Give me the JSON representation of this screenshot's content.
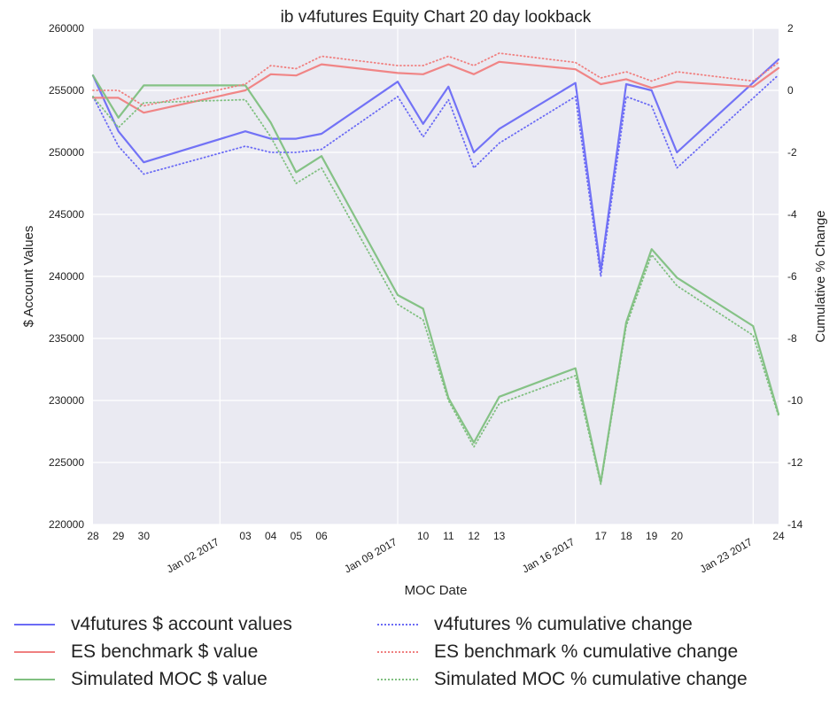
{
  "chart_data": {
    "type": "line",
    "title": "ib v4futures Equity Chart 20 day lookback",
    "xlabel": "MOC Date",
    "ylabel": "$ Account Values",
    "ylabel_right": "Cumulative % Change",
    "x": [
      "2016-12-28",
      "2016-12-29",
      "2016-12-30",
      "2017-01-03",
      "2017-01-04",
      "2017-01-05",
      "2017-01-06",
      "2017-01-09",
      "2017-01-10",
      "2017-01-11",
      "2017-01-12",
      "2017-01-13",
      "2017-01-16",
      "2017-01-17",
      "2017-01-18",
      "2017-01-19",
      "2017-01-20",
      "2017-01-23",
      "2017-01-24"
    ],
    "x_tick_labels": [
      {
        "date": "2016-12-28",
        "label": "28"
      },
      {
        "date": "2016-12-29",
        "label": "29"
      },
      {
        "date": "2016-12-30",
        "label": "30"
      },
      {
        "date": "2017-01-03",
        "label": "03"
      },
      {
        "date": "2017-01-04",
        "label": "04"
      },
      {
        "date": "2017-01-05",
        "label": "05"
      },
      {
        "date": "2017-01-06",
        "label": "06"
      },
      {
        "date": "2017-01-10",
        "label": "10"
      },
      {
        "date": "2017-01-11",
        "label": "11"
      },
      {
        "date": "2017-01-12",
        "label": "12"
      },
      {
        "date": "2017-01-13",
        "label": "13"
      },
      {
        "date": "2017-01-17",
        "label": "17"
      },
      {
        "date": "2017-01-18",
        "label": "18"
      },
      {
        "date": "2017-01-19",
        "label": "19"
      },
      {
        "date": "2017-01-20",
        "label": "20"
      },
      {
        "date": "2017-01-24",
        "label": "24"
      }
    ],
    "x_major_labels": [
      {
        "date": "2017-01-02",
        "label": "Jan 02 2017"
      },
      {
        "date": "2017-01-09",
        "label": "Jan 09 2017"
      },
      {
        "date": "2017-01-16",
        "label": "Jan 16 2017"
      },
      {
        "date": "2017-01-23",
        "label": "Jan 23 2017"
      }
    ],
    "xlim": [
      "2016-12-28",
      "2017-01-24"
    ],
    "ylim": [
      220000,
      260000
    ],
    "yticks": [
      220000,
      225000,
      230000,
      235000,
      240000,
      245000,
      250000,
      255000,
      260000
    ],
    "ylim_right": [
      -14,
      2
    ],
    "yticks_right": [
      -14,
      -12,
      -10,
      -8,
      -6,
      -4,
      -2,
      0,
      2
    ],
    "grid": true,
    "legend_position": "bottom",
    "series": [
      {
        "name": "v4futures $ account values",
        "axis": "left",
        "style": "solid",
        "color": "#6b6bf5",
        "points": [
          [
            "2016-12-28",
            256200
          ],
          [
            "2016-12-29",
            251700
          ],
          [
            "2016-12-30",
            249200
          ],
          [
            "2017-01-03",
            251700
          ],
          [
            "2017-01-04",
            251100
          ],
          [
            "2017-01-05",
            251100
          ],
          [
            "2017-01-06",
            251500
          ],
          [
            "2017-01-09",
            255700
          ],
          [
            "2017-01-10",
            252300
          ],
          [
            "2017-01-11",
            255300
          ],
          [
            "2017-01-12",
            250000
          ],
          [
            "2017-01-13",
            251900
          ],
          [
            "2017-01-16",
            255600
          ],
          [
            "2017-01-17",
            240500
          ],
          [
            "2017-01-18",
            255500
          ],
          [
            "2017-01-19",
            255000
          ],
          [
            "2017-01-20",
            250000
          ],
          [
            "2017-01-24",
            257500
          ]
        ]
      },
      {
        "name": "ES benchmark $ value",
        "axis": "left",
        "style": "solid",
        "color": "#f08080",
        "points": [
          [
            "2016-12-28",
            254400
          ],
          [
            "2016-12-29",
            254400
          ],
          [
            "2016-12-30",
            253200
          ],
          [
            "2017-01-03",
            255000
          ],
          [
            "2017-01-04",
            256300
          ],
          [
            "2017-01-05",
            256200
          ],
          [
            "2017-01-06",
            257100
          ],
          [
            "2017-01-09",
            256400
          ],
          [
            "2017-01-10",
            256300
          ],
          [
            "2017-01-11",
            257100
          ],
          [
            "2017-01-12",
            256300
          ],
          [
            "2017-01-13",
            257300
          ],
          [
            "2017-01-16",
            256700
          ],
          [
            "2017-01-17",
            255500
          ],
          [
            "2017-01-18",
            255900
          ],
          [
            "2017-01-19",
            255200
          ],
          [
            "2017-01-20",
            255700
          ],
          [
            "2017-01-23",
            255300
          ],
          [
            "2017-01-24",
            256800
          ]
        ]
      },
      {
        "name": "Simulated MOC $ value",
        "axis": "left",
        "style": "solid",
        "color": "#80c080",
        "points": [
          [
            "2016-12-28",
            256200
          ],
          [
            "2016-12-29",
            252800
          ],
          [
            "2016-12-30",
            255400
          ],
          [
            "2017-01-03",
            255400
          ],
          [
            "2017-01-04",
            252400
          ],
          [
            "2017-01-05",
            248400
          ],
          [
            "2017-01-06",
            249700
          ],
          [
            "2017-01-09",
            238500
          ],
          [
            "2017-01-10",
            237400
          ],
          [
            "2017-01-11",
            230200
          ],
          [
            "2017-01-12",
            226600
          ],
          [
            "2017-01-13",
            230300
          ],
          [
            "2017-01-16",
            232600
          ],
          [
            "2017-01-17",
            223400
          ],
          [
            "2017-01-18",
            236300
          ],
          [
            "2017-01-19",
            242200
          ],
          [
            "2017-01-20",
            239900
          ],
          [
            "2017-01-23",
            236000
          ],
          [
            "2017-01-24",
            228900
          ]
        ]
      },
      {
        "name": "v4futures % cumulative change",
        "axis": "right",
        "style": "dotted",
        "color": "#6b6bf5",
        "points": [
          [
            "2016-12-28",
            -0.2
          ],
          [
            "2016-12-29",
            -1.8
          ],
          [
            "2016-12-30",
            -2.7
          ],
          [
            "2017-01-03",
            -1.8
          ],
          [
            "2017-01-04",
            -2.0
          ],
          [
            "2017-01-05",
            -2.0
          ],
          [
            "2017-01-06",
            -1.9
          ],
          [
            "2017-01-09",
            -0.2
          ],
          [
            "2017-01-10",
            -1.5
          ],
          [
            "2017-01-11",
            -0.3
          ],
          [
            "2017-01-12",
            -2.5
          ],
          [
            "2017-01-13",
            -1.7
          ],
          [
            "2017-01-16",
            -0.2
          ],
          [
            "2017-01-17",
            -6.0
          ],
          [
            "2017-01-18",
            -0.2
          ],
          [
            "2017-01-19",
            -0.5
          ],
          [
            "2017-01-20",
            -2.5
          ],
          [
            "2017-01-24",
            0.5
          ]
        ]
      },
      {
        "name": "ES benchmark % cumulative change",
        "axis": "right",
        "style": "dotted",
        "color": "#f08080",
        "points": [
          [
            "2016-12-28",
            0.0
          ],
          [
            "2016-12-29",
            0.0
          ],
          [
            "2016-12-30",
            -0.5
          ],
          [
            "2017-01-03",
            0.2
          ],
          [
            "2017-01-04",
            0.8
          ],
          [
            "2017-01-05",
            0.7
          ],
          [
            "2017-01-06",
            1.1
          ],
          [
            "2017-01-09",
            0.8
          ],
          [
            "2017-01-10",
            0.8
          ],
          [
            "2017-01-11",
            1.1
          ],
          [
            "2017-01-12",
            0.8
          ],
          [
            "2017-01-13",
            1.2
          ],
          [
            "2017-01-16",
            0.9
          ],
          [
            "2017-01-17",
            0.4
          ],
          [
            "2017-01-18",
            0.6
          ],
          [
            "2017-01-19",
            0.3
          ],
          [
            "2017-01-20",
            0.6
          ],
          [
            "2017-01-23",
            0.3
          ],
          [
            "2017-01-24",
            0.9
          ]
        ]
      },
      {
        "name": "Simulated MOC % cumulative change",
        "axis": "right",
        "style": "dotted",
        "color": "#80c080",
        "points": [
          [
            "2016-12-28",
            -0.2
          ],
          [
            "2016-12-29",
            -1.2
          ],
          [
            "2016-12-30",
            -0.4
          ],
          [
            "2017-01-03",
            -0.3
          ],
          [
            "2017-01-04",
            -1.5
          ],
          [
            "2017-01-05",
            -3.0
          ],
          [
            "2017-01-06",
            -2.5
          ],
          [
            "2017-01-09",
            -6.9
          ],
          [
            "2017-01-10",
            -7.4
          ],
          [
            "2017-01-11",
            -10.0
          ],
          [
            "2017-01-12",
            -11.5
          ],
          [
            "2017-01-13",
            -10.1
          ],
          [
            "2017-01-16",
            -9.2
          ],
          [
            "2017-01-17",
            -12.7
          ],
          [
            "2017-01-18",
            -7.6
          ],
          [
            "2017-01-19",
            -5.3
          ],
          [
            "2017-01-20",
            -6.3
          ],
          [
            "2017-01-23",
            -7.9
          ],
          [
            "2017-01-24",
            -10.5
          ]
        ]
      }
    ]
  }
}
